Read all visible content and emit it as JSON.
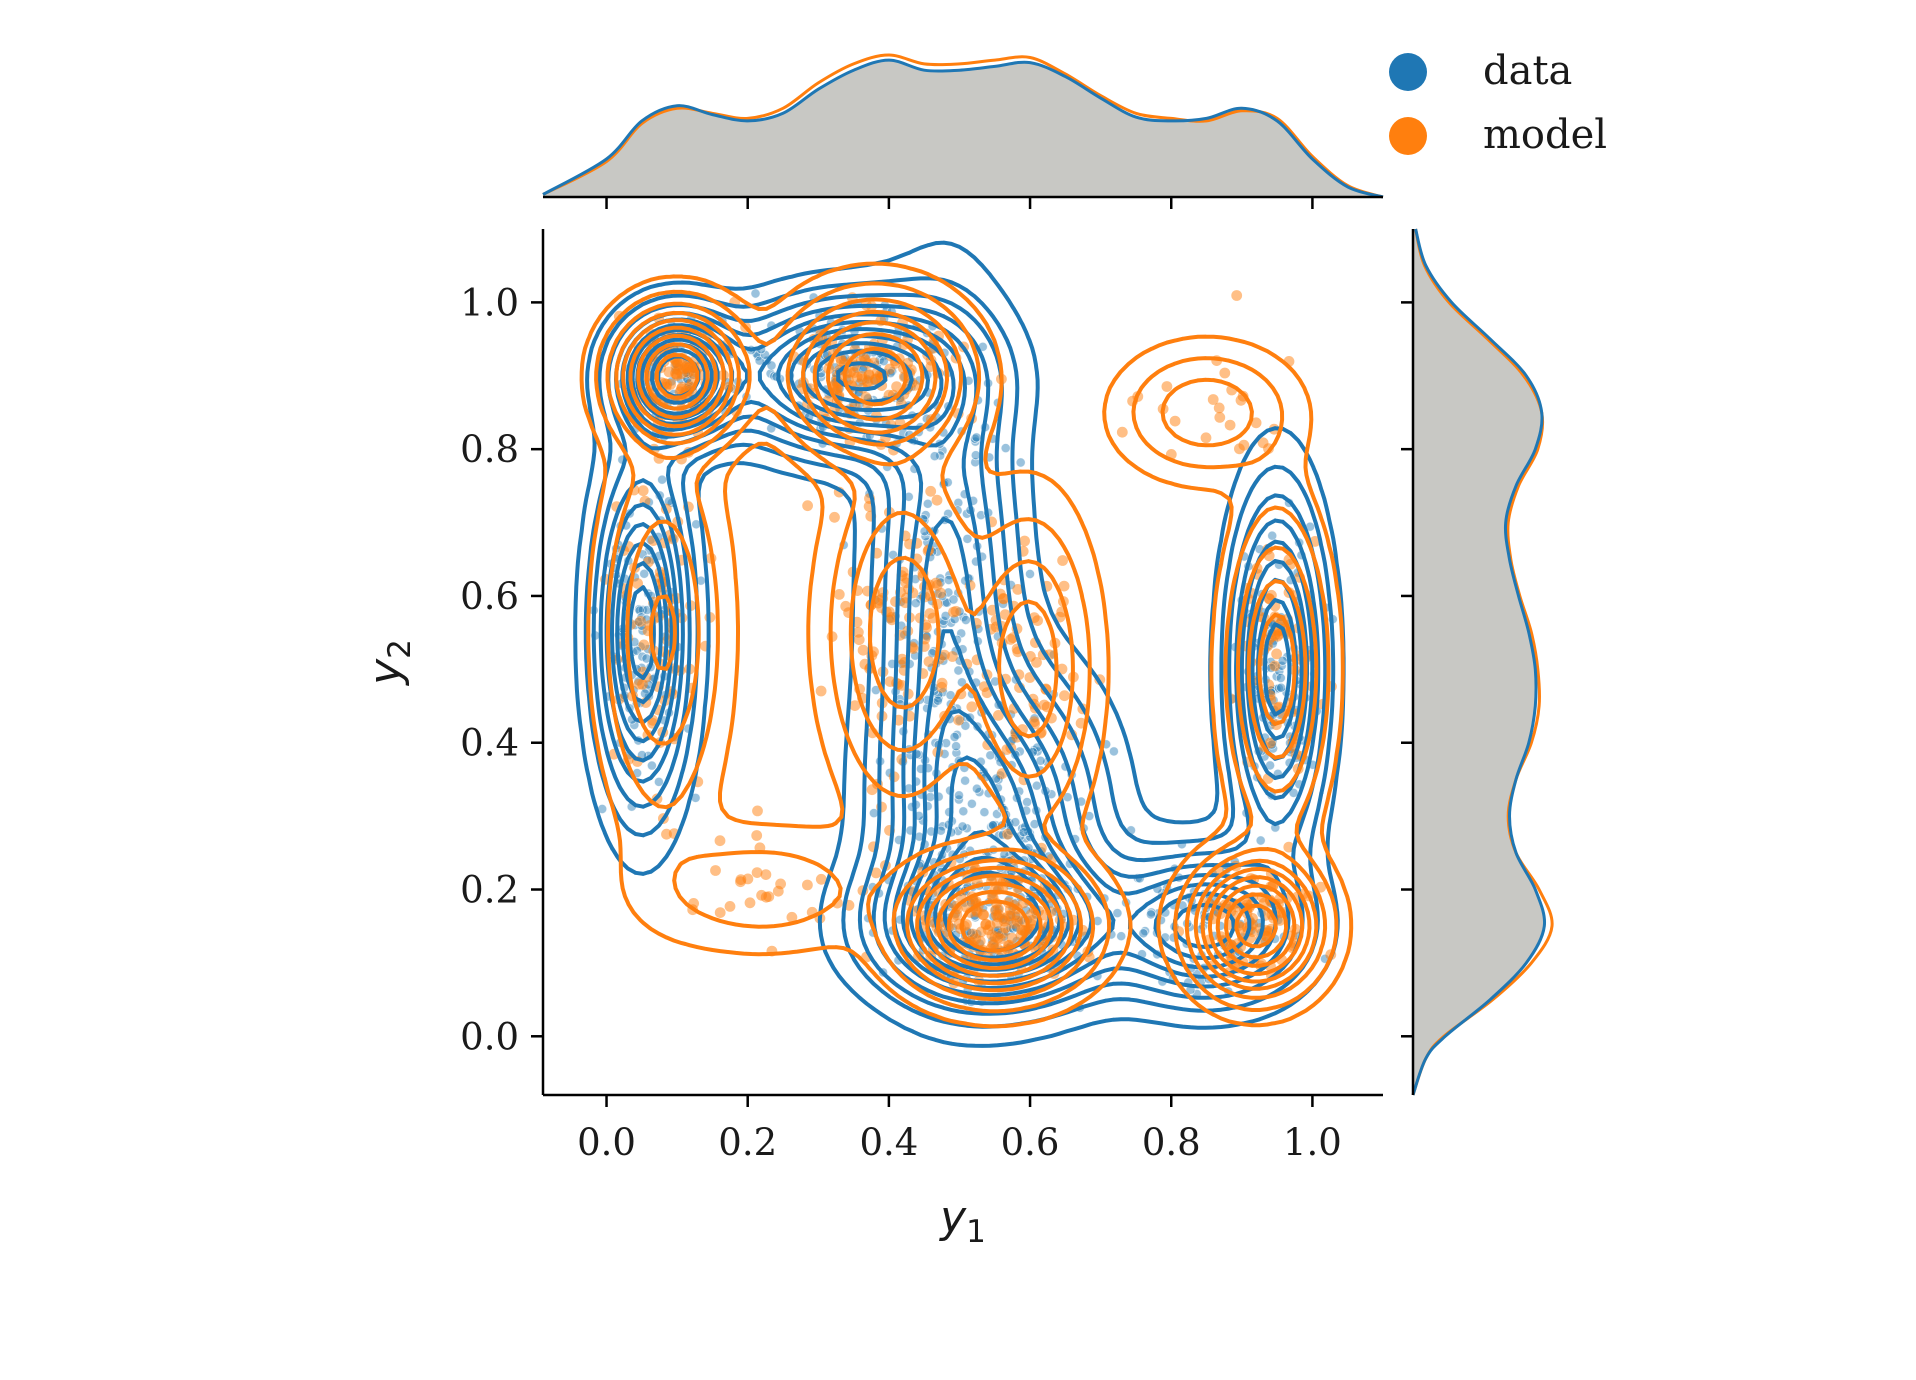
{
  "chart_data": {
    "type": "scatter",
    "subtype": "joint-kde",
    "xlabel": "y",
    "xlabel_sub": "1",
    "ylabel": "y",
    "ylabel_sub": "2",
    "xlim": [
      -0.09,
      1.1
    ],
    "ylim": [
      -0.08,
      1.1
    ],
    "x_ticks": [
      0.0,
      0.2,
      0.4,
      0.6,
      0.8,
      1.0
    ],
    "x_tick_labels": [
      "0.0",
      "0.2",
      "0.4",
      "0.6",
      "0.8",
      "1.0"
    ],
    "y_ticks": [
      0.0,
      0.2,
      0.4,
      0.6,
      0.8,
      1.0
    ],
    "y_tick_labels": [
      "0.0",
      "0.2",
      "0.4",
      "0.6",
      "0.8",
      "1.0"
    ],
    "legend_position": "top-right",
    "grid": false,
    "marginal_fill_color": "#c8c8c4",
    "series": [
      {
        "name": "data",
        "color": "#1f77b4",
        "modes": [
          {
            "x": 0.1,
            "y": 0.9,
            "sx": 0.05,
            "sy": 0.05,
            "w": 0.5
          },
          {
            "x": 0.35,
            "y": 0.9,
            "sx": 0.1,
            "sy": 0.06,
            "w": 1.0
          },
          {
            "x": 0.48,
            "y": 0.6,
            "sx": 0.06,
            "sy": 0.22,
            "w": 1.2
          },
          {
            "x": 0.55,
            "y": 0.3,
            "sx": 0.09,
            "sy": 0.12,
            "w": 1.2
          },
          {
            "x": 0.55,
            "y": 0.15,
            "sx": 0.1,
            "sy": 0.06,
            "w": 1.0
          },
          {
            "x": 0.05,
            "y": 0.55,
            "sx": 0.04,
            "sy": 0.14,
            "w": 0.8
          },
          {
            "x": 0.95,
            "y": 0.5,
            "sx": 0.04,
            "sy": 0.14,
            "w": 0.8
          },
          {
            "x": 0.85,
            "y": 0.15,
            "sx": 0.08,
            "sy": 0.06,
            "w": 0.6
          }
        ]
      },
      {
        "name": "model",
        "color": "#ff7f0e",
        "modes": [
          {
            "x": 0.1,
            "y": 0.9,
            "sx": 0.05,
            "sy": 0.05,
            "w": 0.8
          },
          {
            "x": 0.38,
            "y": 0.9,
            "sx": 0.07,
            "sy": 0.06,
            "w": 0.9
          },
          {
            "x": 0.42,
            "y": 0.55,
            "sx": 0.06,
            "sy": 0.13,
            "w": 0.8
          },
          {
            "x": 0.6,
            "y": 0.5,
            "sx": 0.05,
            "sy": 0.12,
            "w": 0.6
          },
          {
            "x": 0.55,
            "y": 0.15,
            "sx": 0.07,
            "sy": 0.05,
            "w": 1.2
          },
          {
            "x": 0.92,
            "y": 0.15,
            "sx": 0.05,
            "sy": 0.05,
            "w": 0.8
          },
          {
            "x": 0.08,
            "y": 0.55,
            "sx": 0.05,
            "sy": 0.15,
            "w": 0.6
          },
          {
            "x": 0.95,
            "y": 0.5,
            "sx": 0.04,
            "sy": 0.12,
            "w": 0.6
          },
          {
            "x": 0.22,
            "y": 0.2,
            "sx": 0.1,
            "sy": 0.05,
            "w": 0.2
          },
          {
            "x": 0.85,
            "y": 0.85,
            "sx": 0.07,
            "sy": 0.05,
            "w": 0.25
          }
        ]
      }
    ],
    "marginal_x": {
      "x": [
        -0.09,
        0.0,
        0.05,
        0.1,
        0.15,
        0.2,
        0.25,
        0.3,
        0.35,
        0.4,
        0.45,
        0.5,
        0.55,
        0.6,
        0.65,
        0.7,
        0.75,
        0.8,
        0.85,
        0.9,
        0.95,
        1.0,
        1.05,
        1.1
      ],
      "data": [
        0.02,
        0.3,
        0.6,
        0.72,
        0.65,
        0.6,
        0.66,
        0.85,
        1.0,
        1.08,
        1.0,
        1.0,
        1.03,
        1.06,
        0.95,
        0.78,
        0.63,
        0.6,
        0.62,
        0.7,
        0.6,
        0.3,
        0.08,
        0.0
      ],
      "model": [
        0.02,
        0.28,
        0.58,
        0.7,
        0.66,
        0.62,
        0.7,
        0.9,
        1.05,
        1.12,
        1.05,
        1.05,
        1.08,
        1.1,
        0.97,
        0.8,
        0.66,
        0.62,
        0.6,
        0.68,
        0.62,
        0.32,
        0.09,
        0.0
      ]
    },
    "marginal_y": {
      "y": [
        -0.08,
        -0.03,
        0.0,
        0.05,
        0.1,
        0.15,
        0.2,
        0.25,
        0.3,
        0.35,
        0.4,
        0.45,
        0.5,
        0.55,
        0.6,
        0.65,
        0.7,
        0.75,
        0.8,
        0.85,
        0.9,
        0.95,
        1.0,
        1.05,
        1.1
      ],
      "data": [
        0.0,
        0.1,
        0.25,
        0.6,
        0.88,
        1.02,
        0.95,
        0.8,
        0.75,
        0.8,
        0.9,
        0.95,
        0.95,
        0.9,
        0.82,
        0.75,
        0.72,
        0.8,
        0.95,
        1.0,
        0.88,
        0.6,
        0.3,
        0.1,
        0.02
      ],
      "model": [
        0.0,
        0.1,
        0.24,
        0.62,
        0.92,
        1.08,
        0.98,
        0.8,
        0.74,
        0.8,
        0.92,
        0.98,
        0.97,
        0.92,
        0.83,
        0.76,
        0.74,
        0.82,
        0.97,
        1.0,
        0.86,
        0.58,
        0.28,
        0.09,
        0.02
      ]
    }
  }
}
